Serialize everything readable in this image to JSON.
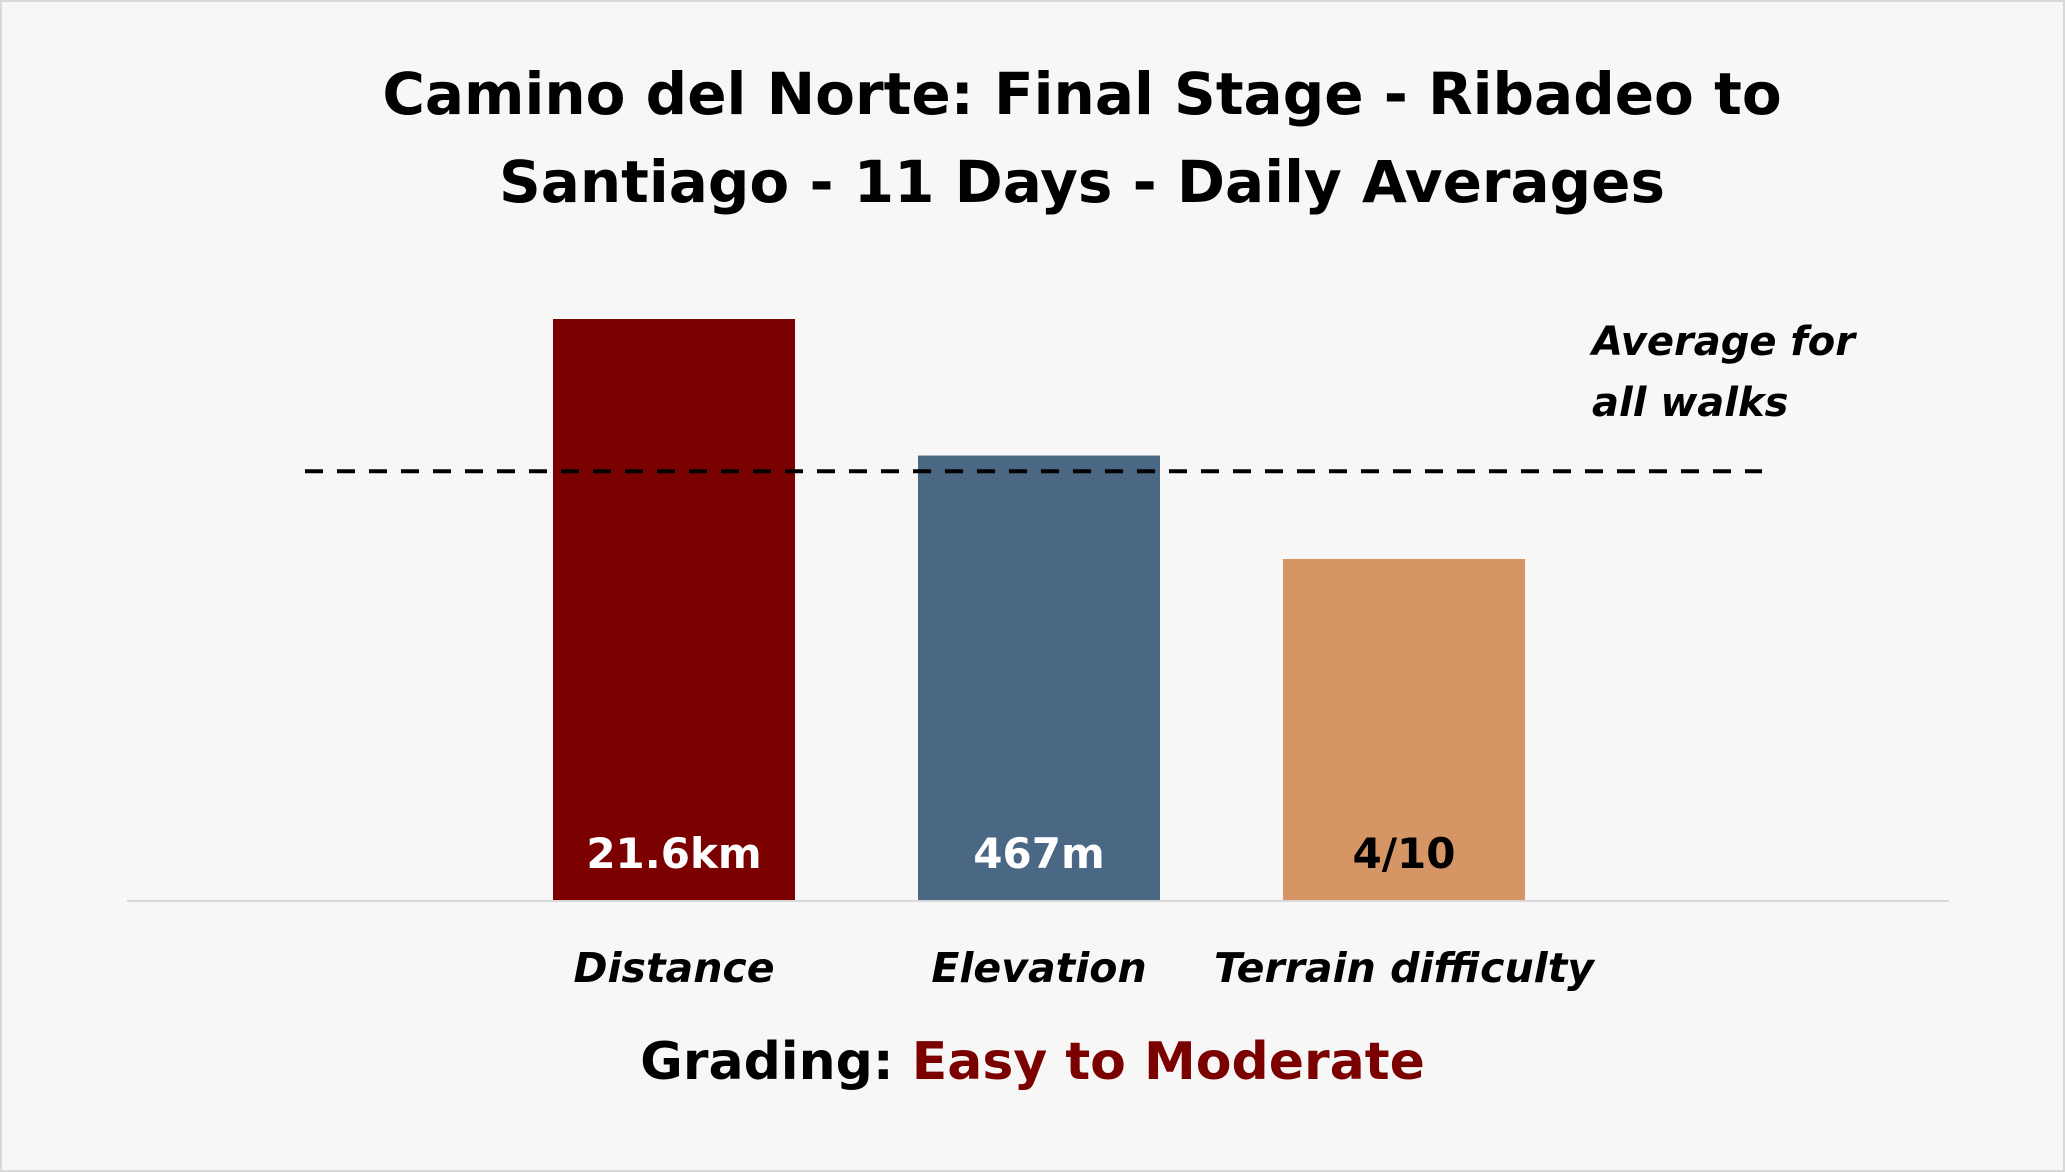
{
  "chart_data": {
    "type": "bar",
    "title": "Camino del Norte: Final Stage - Ribadeo to Santiago - 11 Days - Daily Averages",
    "categories": [
      "Distance",
      "Elevation",
      "Terrain difficulty"
    ],
    "value_labels": [
      "21.6km",
      "467m",
      "4/10"
    ],
    "relative_values": [
      1.3,
      0.995,
      0.764
    ],
    "average_line": {
      "value": 0.96,
      "label_line1": "Average for",
      "label_line2": "all walks",
      "style": "dashed"
    },
    "ylim": [
      0,
      1.3
    ],
    "grid": false,
    "legend": "none",
    "colors": [
      "#7b0000",
      "#4a6784",
      "#d69564"
    ],
    "label_colors": [
      "#ffffff",
      "#ffffff",
      "#000000"
    ]
  },
  "grading": {
    "label": "Grading:",
    "value": "Easy to Moderate",
    "value_color": "#7b0000"
  }
}
